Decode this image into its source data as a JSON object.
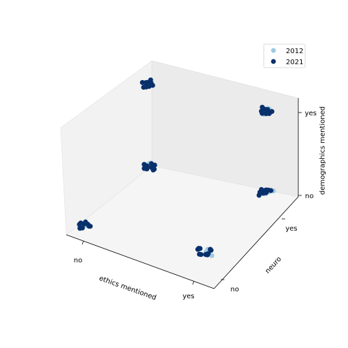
{
  "chart_data": {
    "type": "scatter",
    "dimensions": 3,
    "xlabel": "ethics mentioned",
    "ylabel": "neuro",
    "zlabel": "demographics mentioned",
    "x_ticks": [
      "no",
      "yes"
    ],
    "y_ticks": [
      "no",
      "yes"
    ],
    "z_ticks": [
      "no",
      "yes"
    ],
    "legend_position": "top-right",
    "series": [
      {
        "name": "2012",
        "color": "#9ecae1",
        "points": [
          {
            "ethics": "no",
            "neuro": "no",
            "demographics": "no"
          },
          {
            "ethics": "no",
            "neuro": "yes",
            "demographics": "no"
          },
          {
            "ethics": "yes",
            "neuro": "no",
            "demographics": "no"
          },
          {
            "ethics": "yes",
            "neuro": "yes",
            "demographics": "no"
          },
          {
            "ethics": "yes",
            "neuro": "yes",
            "demographics": "yes"
          }
        ]
      },
      {
        "name": "2021",
        "color": "#08306b",
        "points": [
          {
            "ethics": "no",
            "neuro": "no",
            "demographics": "no"
          },
          {
            "ethics": "no",
            "neuro": "yes",
            "demographics": "no"
          },
          {
            "ethics": "no",
            "neuro": "yes",
            "demographics": "yes"
          },
          {
            "ethics": "yes",
            "neuro": "no",
            "demographics": "no"
          },
          {
            "ethics": "yes",
            "neuro": "yes",
            "demographics": "no"
          },
          {
            "ethics": "yes",
            "neuro": "yes",
            "demographics": "yes"
          }
        ]
      }
    ]
  }
}
